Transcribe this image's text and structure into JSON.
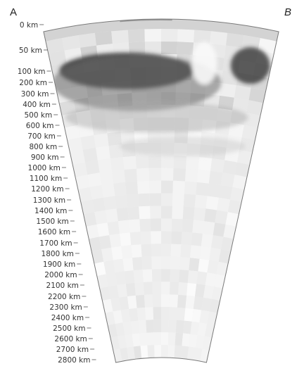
{
  "profile": {
    "start_label": "A",
    "end_label": "B",
    "depth_labels": [
      "0 km",
      "50 km",
      "100 km",
      "200 km",
      "300 km",
      "400 km",
      "500 km",
      "600 km",
      "700 km",
      "800 km",
      "900 km",
      "1000 km",
      "1100 km",
      "1200 km",
      "1300 km",
      "1400 km",
      "1500 km",
      "1600 km",
      "1700 km",
      "1800 km",
      "1900 km",
      "2000 km",
      "2100 km",
      "2200 km",
      "2300 km",
      "2400 km",
      "2500 km",
      "2600 km",
      "2700 km",
      "2800 km"
    ],
    "colors": {
      "fast_anomaly": "#2b2b2b",
      "background": "#f2f2f2",
      "crust": "#c9c9c9",
      "outline": "#7a7a7a"
    }
  }
}
